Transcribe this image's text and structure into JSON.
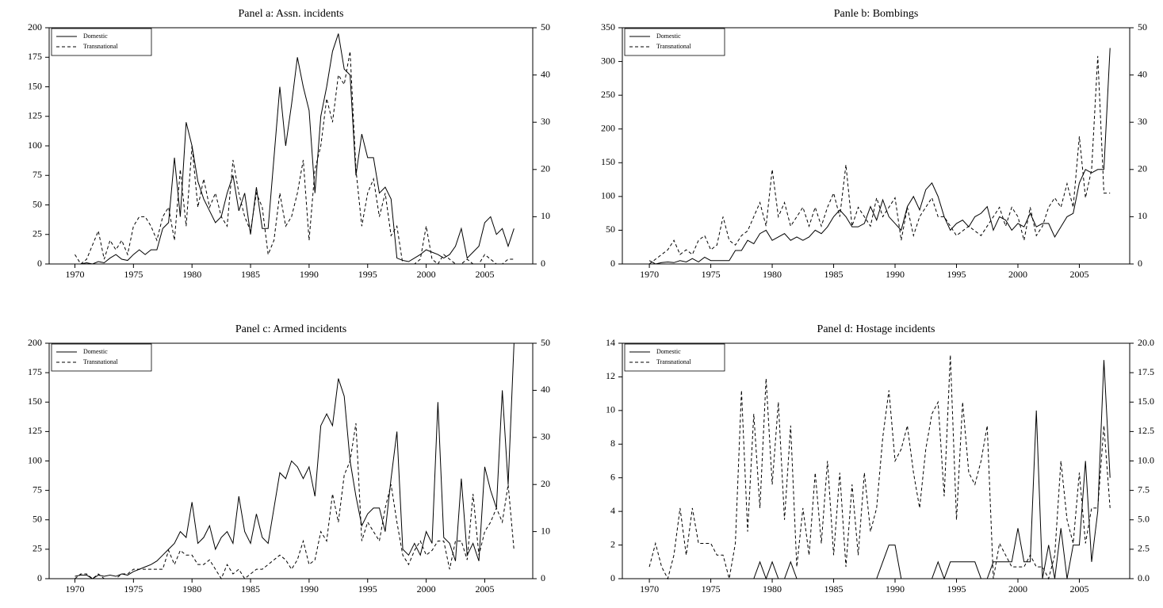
{
  "chart_data": [
    {
      "type": "line",
      "title": "Panel a: Assn. incidents",
      "x": [
        1970,
        1970.5,
        1971,
        1971.5,
        1972,
        1972.5,
        1973,
        1973.5,
        1974,
        1974.5,
        1975,
        1975.5,
        1976,
        1976.5,
        1977,
        1977.5,
        1978,
        1978.5,
        1979,
        1979.5,
        1980,
        1980.5,
        1981,
        1981.5,
        1982,
        1982.5,
        1983,
        1983.5,
        1984,
        1984.5,
        1985,
        1985.5,
        1986,
        1986.5,
        1987,
        1987.5,
        1988,
        1988.5,
        1989,
        1989.5,
        1990,
        1990.5,
        1991,
        1991.5,
        1992,
        1992.5,
        1993,
        1993.5,
        1994,
        1994.5,
        1995,
        1995.5,
        1996,
        1996.5,
        1997,
        1997.5,
        1998,
        1998.5,
        1999,
        1999.5,
        2000,
        2000.5,
        2001,
        2001.5,
        2002,
        2002.5,
        2003,
        2003.5,
        2004,
        2004.5,
        2005,
        2005.5,
        2006,
        2006.5,
        2007,
        2007.5
      ],
      "series": [
        {
          "name": "Domestic",
          "color": "#000000",
          "dash": "solid",
          "values": [
            0,
            0,
            1,
            0,
            2,
            1,
            5,
            8,
            4,
            3,
            8,
            12,
            8,
            12,
            12,
            30,
            35,
            90,
            40,
            120,
            100,
            70,
            55,
            45,
            35,
            40,
            60,
            75,
            45,
            60,
            25,
            65,
            30,
            30,
            90,
            150,
            100,
            135,
            175,
            150,
            130,
            60,
            125,
            150,
            180,
            195,
            165,
            160,
            75,
            110,
            90,
            90,
            60,
            65,
            55,
            5,
            3,
            2,
            5,
            8,
            12,
            10,
            8,
            5,
            8,
            15,
            30,
            5,
            10,
            15,
            35,
            40,
            25,
            30,
            15,
            30
          ]
        },
        {
          "name": "Transnational",
          "color": "#000000",
          "dash": "dashed",
          "axis": "y2",
          "values": [
            2,
            0,
            1,
            4,
            7,
            1,
            5,
            3,
            5,
            2,
            8,
            10,
            10,
            8,
            5,
            10,
            12,
            5,
            20,
            8,
            25,
            12,
            18,
            12,
            15,
            10,
            8,
            22,
            15,
            10,
            7,
            15,
            12,
            2,
            5,
            15,
            8,
            10,
            15,
            22,
            5,
            20,
            25,
            35,
            30,
            40,
            38,
            45,
            20,
            8,
            15,
            18,
            10,
            15,
            6,
            8,
            0,
            0,
            0,
            1,
            8,
            1,
            0,
            2,
            1,
            0,
            0,
            1,
            0,
            0,
            2,
            1,
            0,
            0,
            1,
            1
          ]
        }
      ],
      "xlim": [
        1967.8,
        2009.1
      ],
      "xticks": [
        1970,
        1975,
        1980,
        1985,
        1990,
        1995,
        2000,
        2005
      ],
      "ylim": [
        0,
        200
      ],
      "yticks": [
        0,
        25,
        50,
        75,
        100,
        125,
        150,
        175,
        200
      ],
      "y2lim": [
        0,
        50
      ],
      "y2ticks": [
        0,
        10,
        20,
        30,
        40,
        50
      ],
      "legend": "upper left"
    },
    {
      "type": "line",
      "title": "Panle b: Bombings",
      "x": [
        1970,
        1970.5,
        1971,
        1971.5,
        1972,
        1972.5,
        1973,
        1973.5,
        1974,
        1974.5,
        1975,
        1975.5,
        1976,
        1976.5,
        1977,
        1977.5,
        1978,
        1978.5,
        1979,
        1979.5,
        1980,
        1980.5,
        1981,
        1981.5,
        1982,
        1982.5,
        1983,
        1983.5,
        1984,
        1984.5,
        1985,
        1985.5,
        1986,
        1986.5,
        1987,
        1987.5,
        1988,
        1988.5,
        1989,
        1989.5,
        1990,
        1990.5,
        1991,
        1991.5,
        1992,
        1992.5,
        1993,
        1993.5,
        1994,
        1994.5,
        1995,
        1995.5,
        1996,
        1996.5,
        1997,
        1997.5,
        1998,
        1998.5,
        1999,
        1999.5,
        2000,
        2000.5,
        2001,
        2001.5,
        2002,
        2002.5,
        2003,
        2003.5,
        2004,
        2004.5,
        2005,
        2005.5,
        2006,
        2006.5,
        2007,
        2007.5
      ],
      "series": [
        {
          "name": "Domestic",
          "color": "#000000",
          "dash": "solid",
          "values": [
            5,
            0,
            2,
            3,
            2,
            5,
            3,
            8,
            3,
            10,
            5,
            5,
            5,
            5,
            20,
            20,
            35,
            30,
            45,
            50,
            35,
            40,
            45,
            35,
            40,
            35,
            40,
            50,
            45,
            55,
            70,
            80,
            70,
            55,
            55,
            60,
            85,
            65,
            95,
            70,
            60,
            50,
            85,
            100,
            80,
            110,
            120,
            100,
            70,
            50,
            60,
            65,
            55,
            70,
            75,
            85,
            50,
            70,
            65,
            50,
            60,
            55,
            75,
            55,
            60,
            60,
            40,
            55,
            70,
            75,
            120,
            140,
            135,
            140,
            140,
            320
          ]
        },
        {
          "name": "Transnational",
          "color": "#000000",
          "dash": "dashed",
          "axis": "y2",
          "values": [
            0,
            1,
            2,
            3,
            5,
            2,
            3,
            2,
            5,
            6,
            3,
            4,
            10,
            5,
            4,
            6,
            7,
            10,
            13,
            8,
            20,
            10,
            13,
            8,
            10,
            12,
            8,
            12,
            8,
            12,
            15,
            10,
            21,
            8,
            12,
            10,
            8,
            14,
            10,
            12,
            14,
            5,
            12,
            6,
            10,
            12,
            14,
            10,
            10,
            8,
            6,
            7,
            8,
            7,
            6,
            8,
            10,
            12,
            8,
            12,
            10,
            5,
            12,
            6,
            8,
            12,
            14,
            12,
            17,
            12,
            27,
            14,
            20,
            44,
            15,
            15
          ]
        }
      ],
      "xlim": [
        1967.8,
        2009.1
      ],
      "xticks": [
        1970,
        1975,
        1980,
        1985,
        1990,
        1995,
        2000,
        2005
      ],
      "ylim": [
        0,
        350
      ],
      "yticks": [
        0,
        50,
        100,
        150,
        200,
        250,
        300,
        350
      ],
      "y2lim": [
        0,
        50
      ],
      "y2ticks": [
        0,
        10,
        20,
        30,
        40,
        50
      ],
      "legend": "upper left"
    },
    {
      "type": "line",
      "title": "Panel c: Armed incidents",
      "x": [
        1970,
        1970.5,
        1971,
        1971.5,
        1972,
        1972.5,
        1973,
        1973.5,
        1974,
        1974.5,
        1975,
        1975.5,
        1976,
        1976.5,
        1977,
        1977.5,
        1978,
        1978.5,
        1979,
        1979.5,
        1980,
        1980.5,
        1981,
        1981.5,
        1982,
        1982.5,
        1983,
        1983.5,
        1984,
        1984.5,
        1985,
        1985.5,
        1986,
        1986.5,
        1987,
        1987.5,
        1988,
        1988.5,
        1989,
        1989.5,
        1990,
        1990.5,
        1991,
        1991.5,
        1992,
        1992.5,
        1993,
        1993.5,
        1994,
        1994.5,
        1995,
        1995.5,
        1996,
        1996.5,
        1997,
        1997.5,
        1998,
        1998.5,
        1999,
        1999.5,
        2000,
        2000.5,
        2001,
        2001.5,
        2002,
        2002.5,
        2003,
        2003.5,
        2004,
        2004.5,
        2005,
        2005.5,
        2006,
        2006.5,
        2007,
        2007.5
      ],
      "series": [
        {
          "name": "Domestic",
          "color": "#000000",
          "dash": "solid",
          "values": [
            2,
            3,
            3,
            0,
            3,
            2,
            3,
            2,
            4,
            3,
            6,
            8,
            10,
            12,
            15,
            20,
            25,
            30,
            40,
            35,
            65,
            30,
            35,
            45,
            25,
            35,
            40,
            30,
            70,
            40,
            30,
            55,
            35,
            30,
            60,
            90,
            85,
            100,
            95,
            85,
            95,
            70,
            130,
            140,
            130,
            170,
            155,
            100,
            70,
            45,
            55,
            60,
            60,
            40,
            85,
            125,
            25,
            20,
            30,
            20,
            40,
            30,
            150,
            35,
            30,
            15,
            85,
            20,
            30,
            15,
            95,
            75,
            60,
            160,
            80,
            200
          ]
        },
        {
          "name": "Transnational",
          "color": "#000000",
          "dash": "dashed",
          "axis": "y2",
          "values": [
            0,
            1,
            1,
            0,
            1,
            0,
            0,
            0,
            1,
            1,
            2,
            2,
            2,
            2,
            2,
            2,
            6,
            3,
            6,
            5,
            5,
            3,
            3,
            4,
            2,
            0,
            3,
            1,
            2,
            0,
            1,
            2,
            2,
            3,
            4,
            5,
            4,
            2,
            4,
            8,
            3,
            4,
            10,
            8,
            18,
            12,
            22,
            25,
            33,
            8,
            12,
            10,
            8,
            15,
            20,
            12,
            5,
            3,
            6,
            8,
            5,
            6,
            8,
            8,
            2,
            8,
            8,
            4,
            18,
            5,
            10,
            12,
            15,
            12,
            20,
            6
          ]
        }
      ],
      "xlim": [
        1967.8,
        2009.1
      ],
      "xticks": [
        1970,
        1975,
        1980,
        1985,
        1990,
        1995,
        2000,
        2005
      ],
      "ylim": [
        0,
        200
      ],
      "yticks": [
        0,
        25,
        50,
        75,
        100,
        125,
        150,
        175,
        200
      ],
      "y2lim": [
        0,
        50
      ],
      "y2ticks": [
        0,
        10,
        20,
        30,
        40,
        50
      ],
      "legend": "upper left"
    },
    {
      "type": "line",
      "title": "Panel d: Hostage incidents",
      "x": [
        1970,
        1970.5,
        1971,
        1971.5,
        1972,
        1972.5,
        1973,
        1973.5,
        1974,
        1974.5,
        1975,
        1975.5,
        1976,
        1976.5,
        1977,
        1977.5,
        1978,
        1978.5,
        1979,
        1979.5,
        1980,
        1980.5,
        1981,
        1981.5,
        1982,
        1982.5,
        1983,
        1983.5,
        1984,
        1984.5,
        1985,
        1985.5,
        1986,
        1986.5,
        1987,
        1987.5,
        1988,
        1988.5,
        1989,
        1989.5,
        1990,
        1990.5,
        1991,
        1991.5,
        1992,
        1992.5,
        1993,
        1993.5,
        1994,
        1994.5,
        1995,
        1995.5,
        1996,
        1996.5,
        1997,
        1997.5,
        1998,
        1998.5,
        1999,
        1999.5,
        2000,
        2000.5,
        2001,
        2001.5,
        2002,
        2002.5,
        2003,
        2003.5,
        2004,
        2004.5,
        2005,
        2005.5,
        2006,
        2006.5,
        2007,
        2007.5
      ],
      "series": [
        {
          "name": "Domestic",
          "color": "#000000",
          "dash": "solid",
          "values": [
            0,
            0,
            0,
            0,
            0,
            0,
            0,
            0,
            0,
            0,
            0,
            0,
            0,
            0,
            0,
            0,
            0,
            0,
            1,
            0,
            1,
            0,
            0,
            1,
            0,
            0,
            0,
            0,
            0,
            0,
            0,
            0,
            0,
            0,
            0,
            0,
            0,
            0,
            1,
            2,
            2,
            0,
            0,
            0,
            0,
            0,
            0,
            1,
            0,
            1,
            1,
            1,
            1,
            1,
            0,
            0,
            1,
            1,
            1,
            1,
            3,
            1,
            1,
            10,
            0,
            2,
            0,
            3,
            0,
            2,
            2,
            7,
            1,
            4,
            13,
            6
          ]
        },
        {
          "name": "Transnational",
          "color": "#000000",
          "dash": "dashed",
          "axis": "y2",
          "values": [
            1,
            3,
            1,
            0,
            2,
            6,
            2,
            6,
            3,
            3,
            3,
            2,
            2,
            0,
            3,
            16,
            4,
            14,
            6,
            17,
            8,
            15,
            5,
            13,
            1,
            6,
            2,
            9,
            3,
            10,
            2,
            9,
            1,
            8,
            2,
            9,
            4,
            6,
            12,
            16,
            10,
            11,
            13,
            9,
            6,
            11,
            14,
            15,
            7,
            19,
            5,
            15,
            9,
            8,
            10,
            13,
            0,
            3,
            2,
            1,
            1,
            1,
            2,
            1,
            1,
            0,
            2,
            10,
            5,
            3,
            9,
            3,
            6,
            6,
            13,
            6
          ]
        }
      ],
      "xlim": [
        1967.8,
        2009.1
      ],
      "xticks": [
        1970,
        1975,
        1980,
        1985,
        1990,
        1995,
        2000,
        2005
      ],
      "ylim": [
        0,
        14
      ],
      "yticks": [
        0,
        2,
        4,
        6,
        8,
        10,
        12,
        14
      ],
      "y2lim": [
        0,
        20
      ],
      "y2ticks": [
        {
          "value": 0,
          "label": "0.0"
        },
        {
          "value": 2.5,
          "label": "2.5"
        },
        {
          "value": 5,
          "label": "5.0"
        },
        {
          "value": 7.5,
          "label": "7.5"
        },
        {
          "value": 10,
          "label": "10.0"
        },
        {
          "value": 12.5,
          "label": "12.5"
        },
        {
          "value": 15,
          "label": "15.0"
        },
        {
          "value": 17.5,
          "label": "17.5"
        },
        {
          "value": 20,
          "label": "20.0"
        }
      ],
      "legend": "upper left"
    }
  ]
}
